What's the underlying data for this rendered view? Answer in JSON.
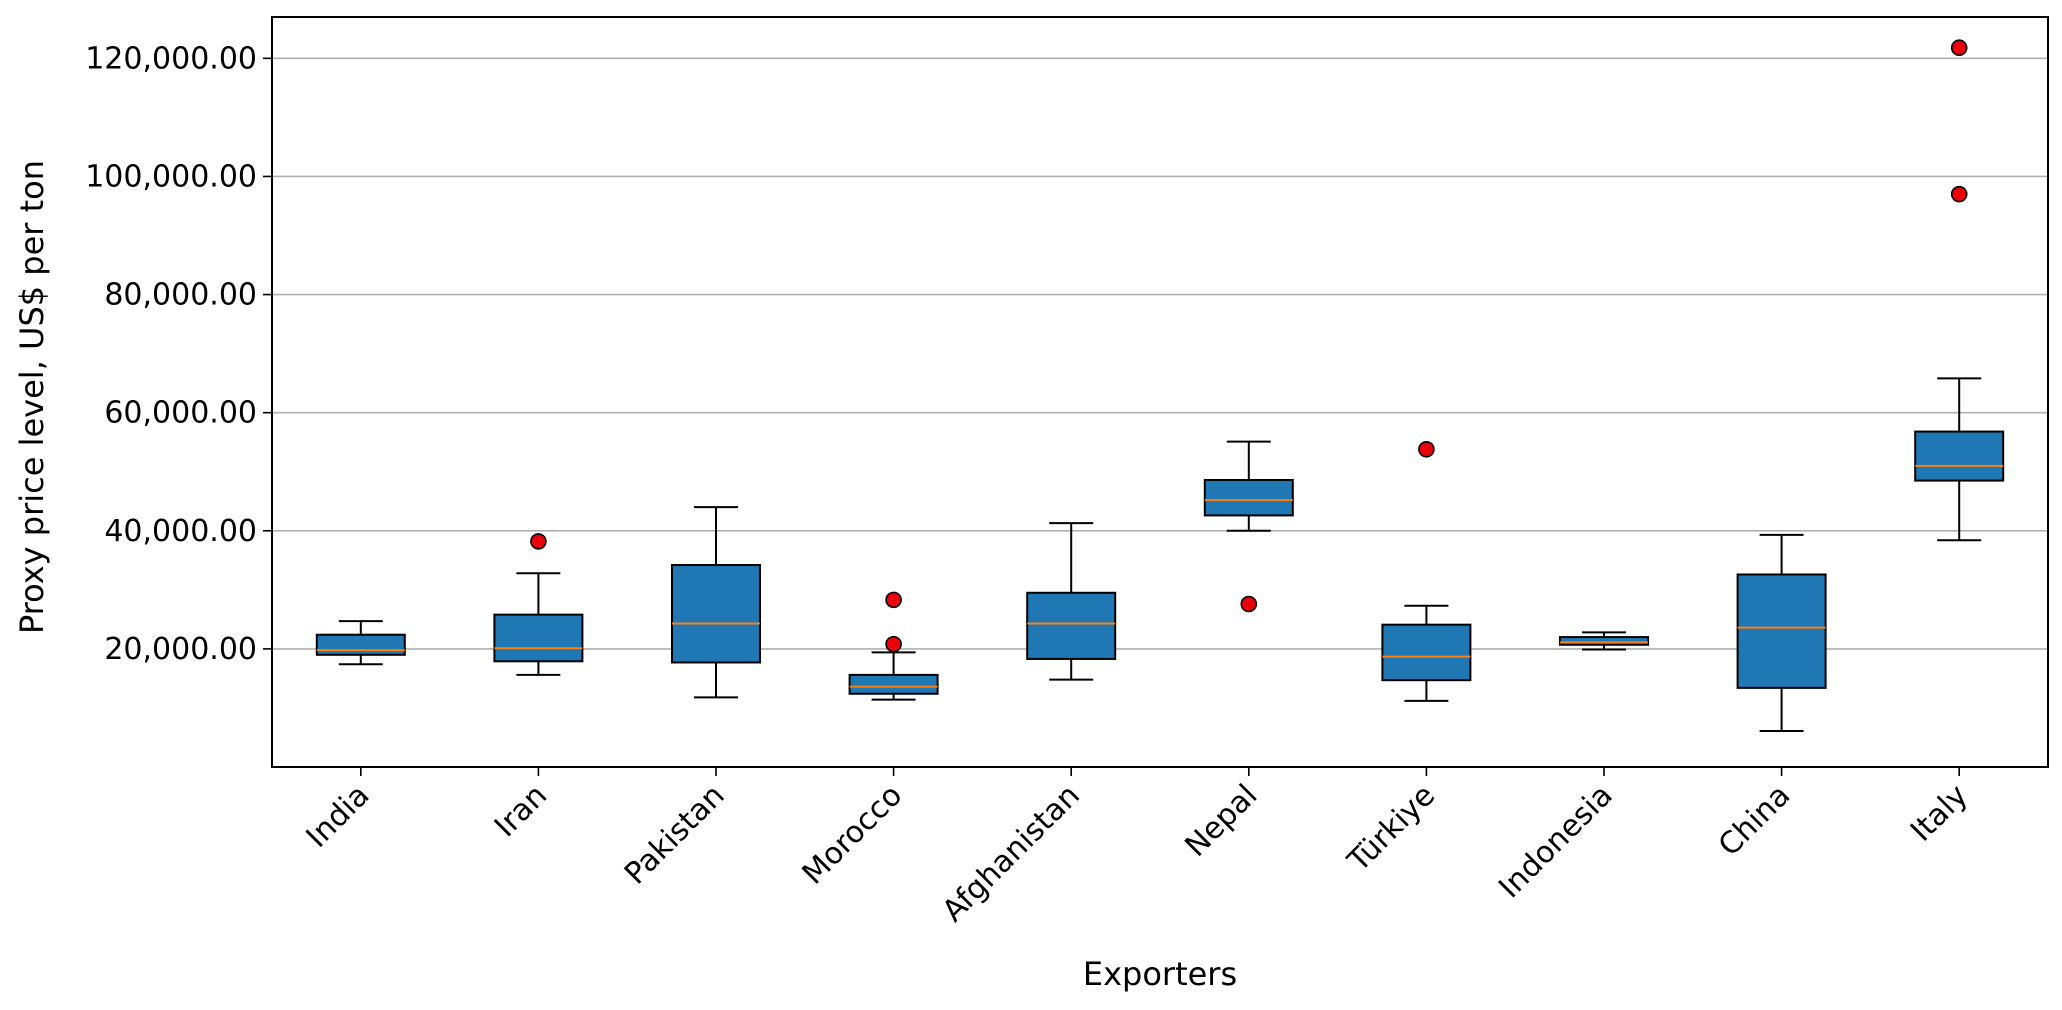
{
  "chart_data": {
    "type": "box",
    "title": "",
    "xlabel": "Exporters",
    "ylabel": "Proxy price level, US$ per ton",
    "ylim": [
      0,
      127000
    ],
    "yticks": [
      20000,
      40000,
      60000,
      80000,
      100000,
      120000
    ],
    "ytick_labels": [
      "20,000.00",
      "40,000.00",
      "60,000.00",
      "80,000.00",
      "100,000.00",
      "120,000.00"
    ],
    "grid": "y",
    "colors": {
      "box": "#1f77b4",
      "median": "#ff7f0e",
      "flier": "#e8000b",
      "grid": "#b0b0b0"
    },
    "categories": [
      "India",
      "Iran",
      "Pakistan",
      "Morocco",
      "Afghanistan",
      "Nepal",
      "Türkiye",
      "Indonesia",
      "China",
      "Italy"
    ],
    "boxes": [
      {
        "whislo": 17400,
        "q1": 19000,
        "med": 19800,
        "q3": 22400,
        "whishi": 24700,
        "fliers": []
      },
      {
        "whislo": 15600,
        "q1": 17900,
        "med": 20100,
        "q3": 25800,
        "whishi": 32800,
        "fliers": [
          38200
        ]
      },
      {
        "whislo": 11800,
        "q1": 17700,
        "med": 24300,
        "q3": 34200,
        "whishi": 44000,
        "fliers": []
      },
      {
        "whislo": 11400,
        "q1": 12400,
        "med": 13600,
        "q3": 15600,
        "whishi": 19400,
        "fliers": [
          20800,
          28300
        ]
      },
      {
        "whislo": 14800,
        "q1": 18300,
        "med": 24300,
        "q3": 29500,
        "whishi": 41300,
        "fliers": []
      },
      {
        "whislo": 40000,
        "q1": 42600,
        "med": 45200,
        "q3": 48600,
        "whishi": 55100,
        "fliers": [
          27600
        ]
      },
      {
        "whislo": 11200,
        "q1": 14700,
        "med": 18700,
        "q3": 24100,
        "whishi": 27300,
        "fliers": [
          53800
        ]
      },
      {
        "whislo": 19900,
        "q1": 20700,
        "med": 21100,
        "q3": 22000,
        "whishi": 22800,
        "fliers": []
      },
      {
        "whislo": 6100,
        "q1": 13400,
        "med": 23600,
        "q3": 32600,
        "whishi": 39300,
        "fliers": []
      },
      {
        "whislo": 38400,
        "q1": 48500,
        "med": 51000,
        "q3": 56800,
        "whishi": 65800,
        "fliers": [
          97000,
          121800
        ]
      }
    ]
  }
}
